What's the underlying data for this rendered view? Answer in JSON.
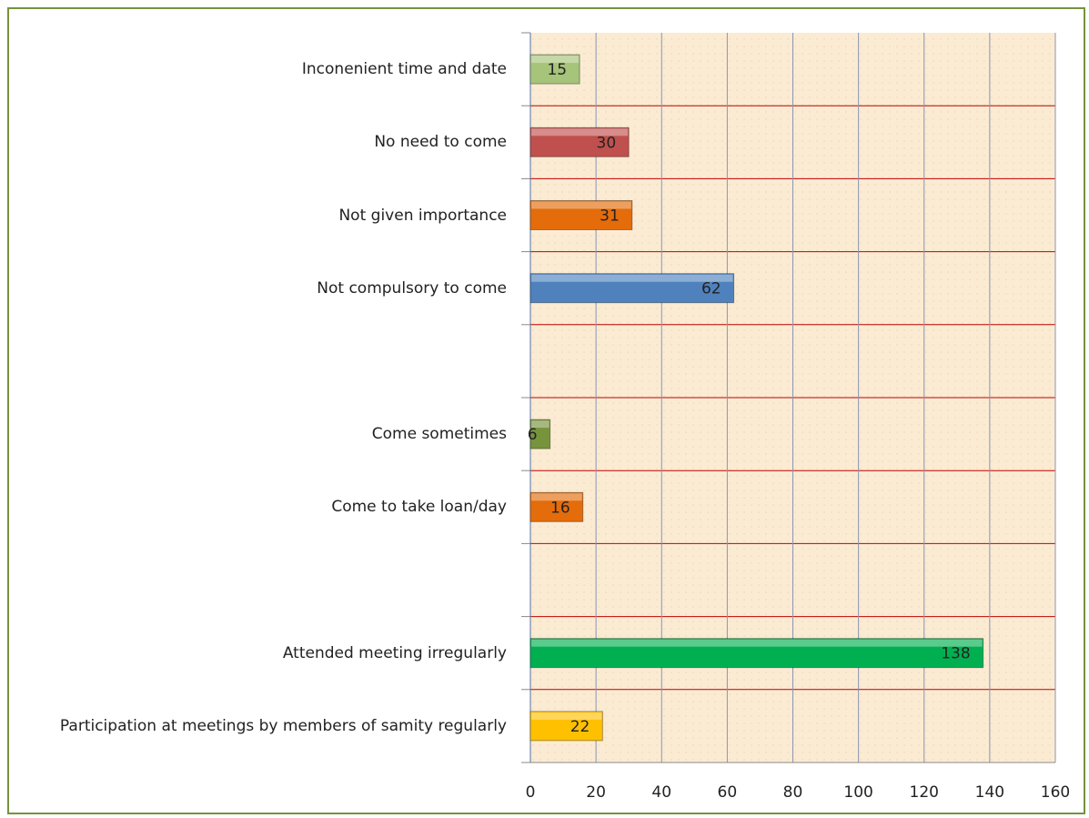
{
  "chart_data": {
    "type": "bar",
    "orientation": "horizontal",
    "categories": [
      "Inconenient time and date",
      "No need to come",
      "Not given importance",
      "Not compulsory to come",
      null,
      "Come sometimes",
      "Come to take loan/day",
      null,
      "Attended meeting irregularly",
      "Participation at meetings by members of samity regularly"
    ],
    "values": [
      15,
      30,
      31,
      62,
      null,
      6,
      16,
      null,
      138,
      22
    ],
    "colors": [
      "#a6c47a",
      "#c0504d",
      "#e46c0a",
      "#4f81bd",
      null,
      "#77933c",
      "#e46c0a",
      null,
      "#00b050",
      "#ffc000"
    ],
    "xlim": [
      0,
      160
    ],
    "xticks": [
      0,
      20,
      40,
      60,
      80,
      100,
      120,
      140,
      160
    ],
    "grid": true
  }
}
